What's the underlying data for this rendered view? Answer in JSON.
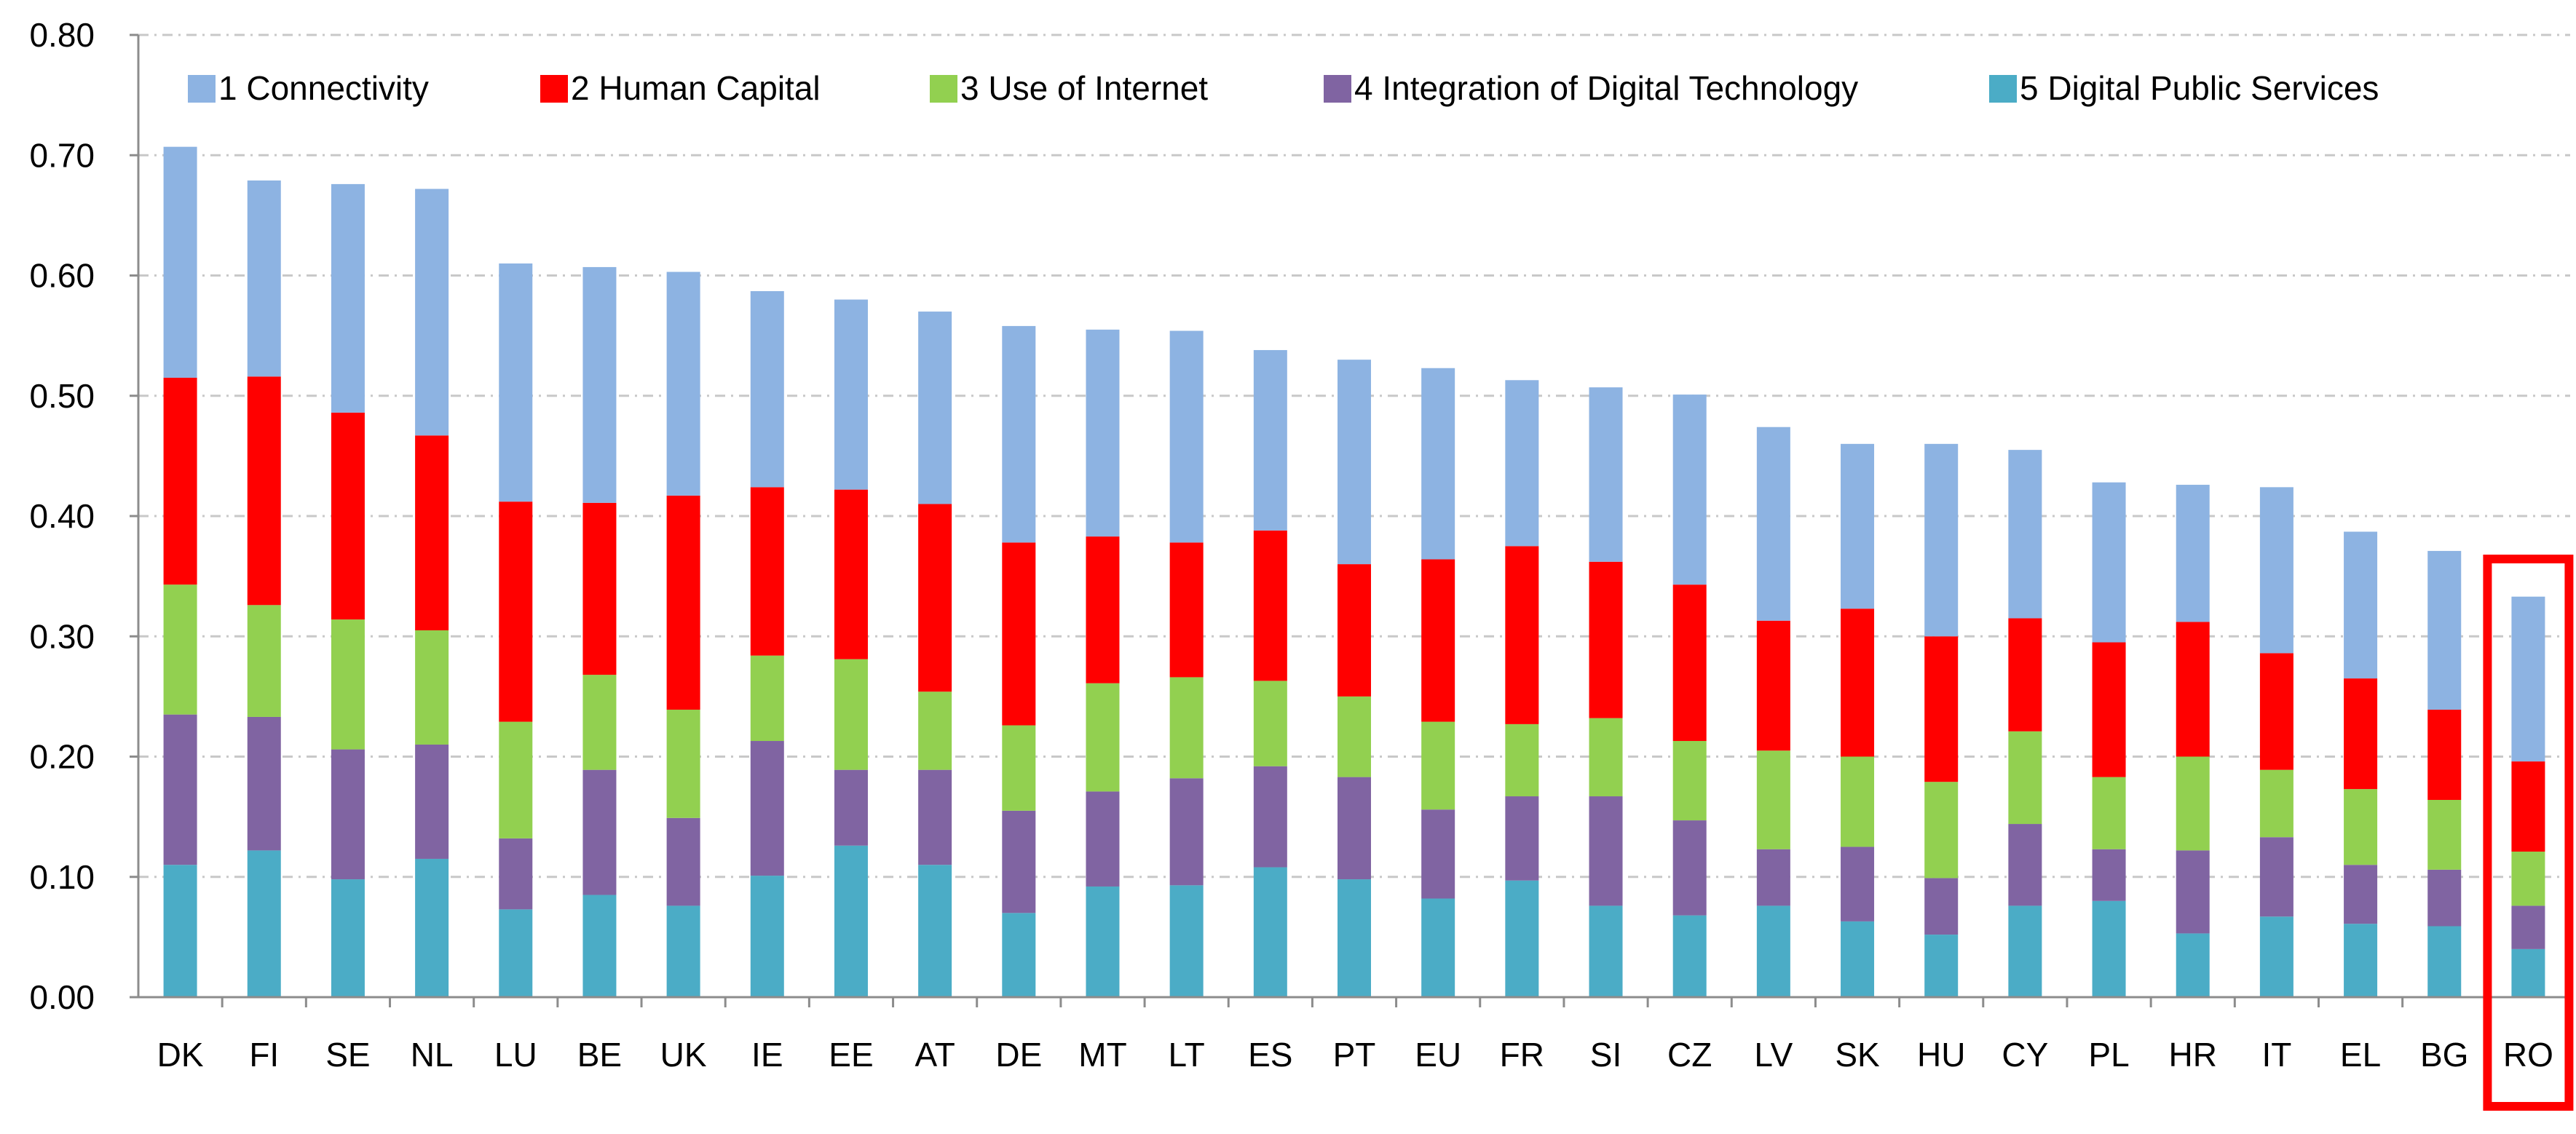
{
  "chart_data": {
    "type": "bar",
    "stacked": true,
    "title": "",
    "xlabel": "",
    "ylabel": "",
    "ylim": [
      0,
      0.8
    ],
    "yticks": [
      "0.00",
      "0.10",
      "0.20",
      "0.30",
      "0.40",
      "0.50",
      "0.60",
      "0.70",
      "0.80"
    ],
    "grid": true,
    "legend_position": "top",
    "categories": [
      "DK",
      "FI",
      "SE",
      "NL",
      "LU",
      "BE",
      "UK",
      "IE",
      "EE",
      "AT",
      "DE",
      "MT",
      "LT",
      "ES",
      "PT",
      "EU",
      "FR",
      "SI",
      "CZ",
      "LV",
      "SK",
      "HU",
      "CY",
      "PL",
      "HR",
      "IT",
      "EL",
      "BG",
      "RO"
    ],
    "highlighted_category": "RO",
    "highlight_color": "#ff0000",
    "series": [
      {
        "name": "5 Digital Public Services",
        "color": "#4bacc6",
        "values": [
          0.11,
          0.122,
          0.098,
          0.115,
          0.073,
          0.085,
          0.076,
          0.101,
          0.126,
          0.11,
          0.07,
          0.092,
          0.093,
          0.108,
          0.098,
          0.082,
          0.097,
          0.076,
          0.068,
          0.076,
          0.063,
          0.052,
          0.076,
          0.08,
          0.053,
          0.067,
          0.061,
          0.059,
          0.04
        ]
      },
      {
        "name": "4 Integration of Digital Technology",
        "color": "#8064a2",
        "values": [
          0.125,
          0.111,
          0.108,
          0.095,
          0.059,
          0.104,
          0.073,
          0.112,
          0.063,
          0.079,
          0.085,
          0.079,
          0.089,
          0.084,
          0.085,
          0.074,
          0.07,
          0.091,
          0.079,
          0.047,
          0.062,
          0.047,
          0.068,
          0.043,
          0.069,
          0.066,
          0.049,
          0.047,
          0.036
        ]
      },
      {
        "name": "3 Use of Internet",
        "color": "#92d050",
        "values": [
          0.108,
          0.093,
          0.108,
          0.095,
          0.097,
          0.079,
          0.09,
          0.071,
          0.092,
          0.065,
          0.071,
          0.09,
          0.084,
          0.071,
          0.067,
          0.073,
          0.06,
          0.065,
          0.066,
          0.082,
          0.075,
          0.08,
          0.077,
          0.06,
          0.078,
          0.056,
          0.063,
          0.058,
          0.045
        ]
      },
      {
        "name": "2 Human Capital",
        "color": "#ff0000",
        "values": [
          0.172,
          0.19,
          0.172,
          0.162,
          0.183,
          0.143,
          0.178,
          0.14,
          0.141,
          0.156,
          0.152,
          0.122,
          0.112,
          0.125,
          0.11,
          0.135,
          0.148,
          0.13,
          0.13,
          0.108,
          0.123,
          0.121,
          0.094,
          0.112,
          0.112,
          0.097,
          0.092,
          0.075,
          0.075
        ]
      },
      {
        "name": "1 Connectivity",
        "color": "#8db3e2",
        "values": [
          0.192,
          0.163,
          0.19,
          0.205,
          0.198,
          0.196,
          0.186,
          0.163,
          0.158,
          0.16,
          0.18,
          0.172,
          0.176,
          0.15,
          0.17,
          0.159,
          0.138,
          0.145,
          0.158,
          0.161,
          0.137,
          0.16,
          0.14,
          0.133,
          0.114,
          0.138,
          0.122,
          0.132,
          0.137
        ]
      }
    ],
    "legend_order": [
      "1 Connectivity",
      "2 Human Capital",
      "3 Use of Internet",
      "4 Integration of Digital Technology",
      "5 Digital Public Services"
    ]
  }
}
